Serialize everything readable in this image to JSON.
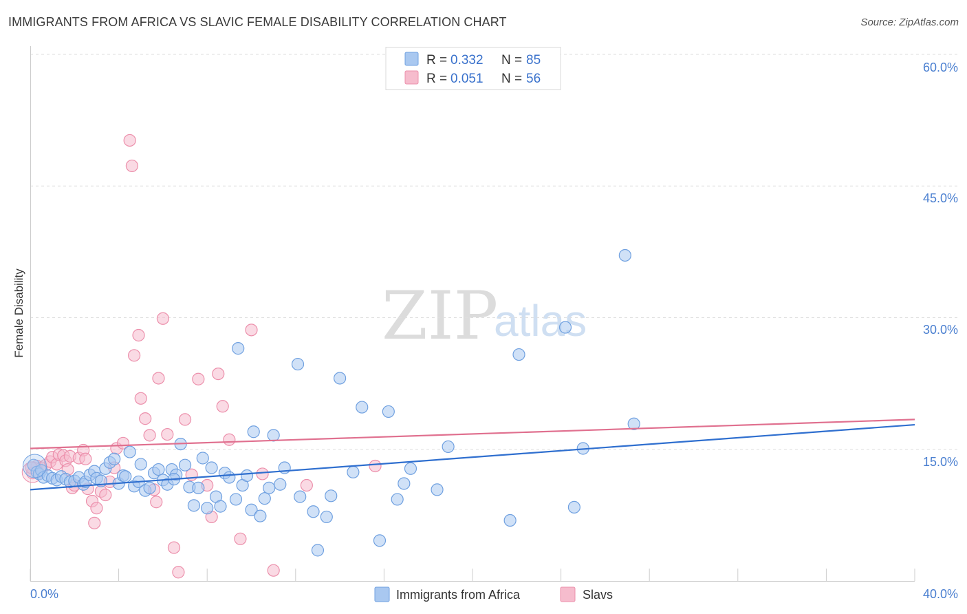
{
  "header": {
    "title": "IMMIGRANTS FROM AFRICA VS SLAVIC FEMALE DISABILITY CORRELATION CHART",
    "source": "Source: ZipAtlas.com"
  },
  "watermark": {
    "zip": "ZIP",
    "atlas": "atlas"
  },
  "colors": {
    "blue_fill": "#a9c8f0",
    "blue_stroke": "#6fa0e0",
    "blue_line": "#2f6fcf",
    "pink_fill": "#f6bccd",
    "pink_stroke": "#ec8fab",
    "pink_line": "#e0708f",
    "grid": "#dedede",
    "tick_label": "#4a7fd0"
  },
  "legend": {
    "rows": [
      {
        "r_label": "R = ",
        "r_value": "0.332",
        "n_label": "N = ",
        "n_value": "85"
      },
      {
        "r_label": "R = ",
        "r_value": "0.051",
        "n_label": "N = ",
        "n_value": "56"
      }
    ]
  },
  "chart_data": {
    "type": "scatter",
    "title": "IMMIGRANTS FROM AFRICA VS SLAVIC FEMALE DISABILITY CORRELATION CHART",
    "xlabel": "",
    "ylabel": "Female Disability",
    "xlim": [
      0,
      40
    ],
    "ylim": [
      0,
      61.5
    ],
    "x_tick_labels": [
      "0.0%",
      "40.0%"
    ],
    "y_ticks": [
      15,
      30,
      45,
      60
    ],
    "y_tick_labels": [
      "15.0%",
      "30.0%",
      "45.0%",
      "60.0%"
    ],
    "grid": true,
    "series": [
      {
        "name": "Immigrants from Africa",
        "R": 0.332,
        "N": 85,
        "trend": {
          "x": [
            0,
            40
          ],
          "y": [
            10.4,
            17.8
          ]
        },
        "points": [
          [
            0.15,
            13.2
          ],
          [
            0.3,
            12.4
          ],
          [
            0.4,
            12.2
          ],
          [
            0.5,
            12.6
          ],
          [
            0.6,
            11.8
          ],
          [
            0.8,
            12.0
          ],
          [
            1.0,
            11.7
          ],
          [
            1.2,
            11.5
          ],
          [
            1.4,
            11.9
          ],
          [
            1.6,
            11.6
          ],
          [
            1.8,
            11.3
          ],
          [
            2.0,
            11.4
          ],
          [
            2.2,
            11.8
          ],
          [
            2.4,
            11.0
          ],
          [
            2.5,
            11.3
          ],
          [
            2.7,
            12.1
          ],
          [
            2.9,
            12.5
          ],
          [
            3.0,
            11.7
          ],
          [
            3.2,
            11.4
          ],
          [
            3.4,
            12.8
          ],
          [
            3.6,
            13.5
          ],
          [
            3.8,
            13.9
          ],
          [
            4.0,
            11.1
          ],
          [
            4.2,
            12.0
          ],
          [
            4.3,
            11.9
          ],
          [
            4.5,
            14.7
          ],
          [
            4.7,
            10.8
          ],
          [
            4.9,
            11.3
          ],
          [
            5.0,
            13.3
          ],
          [
            5.2,
            10.3
          ],
          [
            5.4,
            10.6
          ],
          [
            5.6,
            12.3
          ],
          [
            5.8,
            12.7
          ],
          [
            6.0,
            11.5
          ],
          [
            6.2,
            11.0
          ],
          [
            6.4,
            12.7
          ],
          [
            6.6,
            12.1
          ],
          [
            6.8,
            15.6
          ],
          [
            7.0,
            13.2
          ],
          [
            7.2,
            10.7
          ],
          [
            7.4,
            8.6
          ],
          [
            7.6,
            10.6
          ],
          [
            7.8,
            14.0
          ],
          [
            8.0,
            8.3
          ],
          [
            8.2,
            12.9
          ],
          [
            8.4,
            9.6
          ],
          [
            8.6,
            8.5
          ],
          [
            8.8,
            12.3
          ],
          [
            9.0,
            11.8
          ],
          [
            9.3,
            9.3
          ],
          [
            9.4,
            26.5
          ],
          [
            9.6,
            10.9
          ],
          [
            9.8,
            12.0
          ],
          [
            10.0,
            8.1
          ],
          [
            10.1,
            17.0
          ],
          [
            10.4,
            7.4
          ],
          [
            10.6,
            9.4
          ],
          [
            10.8,
            10.6
          ],
          [
            11.0,
            16.6
          ],
          [
            11.3,
            11.0
          ],
          [
            11.5,
            12.9
          ],
          [
            12.1,
            24.7
          ],
          [
            12.2,
            9.6
          ],
          [
            12.8,
            7.9
          ],
          [
            13.0,
            3.5
          ],
          [
            13.4,
            7.3
          ],
          [
            13.6,
            9.7
          ],
          [
            14.0,
            23.1
          ],
          [
            15.0,
            19.8
          ],
          [
            15.8,
            4.6
          ],
          [
            16.2,
            19.3
          ],
          [
            16.6,
            9.3
          ],
          [
            16.9,
            11.1
          ],
          [
            17.2,
            12.8
          ],
          [
            18.4,
            10.4
          ],
          [
            18.9,
            15.3
          ],
          [
            21.7,
            6.9
          ],
          [
            22.1,
            25.8
          ],
          [
            24.2,
            28.9
          ],
          [
            24.6,
            8.4
          ],
          [
            25.0,
            15.1
          ],
          [
            26.9,
            37.1
          ],
          [
            27.3,
            17.9
          ],
          [
            14.6,
            12.4
          ],
          [
            6.5,
            11.6
          ]
        ]
      },
      {
        "name": "Slavs",
        "R": 0.051,
        "N": 56,
        "trend": {
          "x": [
            0,
            40
          ],
          "y": [
            15.1,
            18.4
          ]
        },
        "points": [
          [
            0.1,
            12.3
          ],
          [
            0.3,
            13.1
          ],
          [
            0.5,
            12.9
          ],
          [
            0.7,
            13.2
          ],
          [
            0.9,
            13.6
          ],
          [
            1.0,
            14.1
          ],
          [
            1.2,
            13.3
          ],
          [
            1.3,
            14.4
          ],
          [
            1.5,
            14.3
          ],
          [
            1.6,
            13.7
          ],
          [
            1.7,
            12.7
          ],
          [
            1.8,
            14.2
          ],
          [
            1.9,
            10.6
          ],
          [
            2.0,
            10.9
          ],
          [
            2.2,
            14.0
          ],
          [
            2.4,
            14.9
          ],
          [
            2.5,
            13.9
          ],
          [
            2.6,
            10.5
          ],
          [
            2.8,
            9.1
          ],
          [
            3.0,
            8.3
          ],
          [
            3.2,
            10.2
          ],
          [
            3.4,
            9.8
          ],
          [
            3.6,
            11.3
          ],
          [
            3.8,
            12.9
          ],
          [
            3.9,
            15.1
          ],
          [
            4.2,
            15.7
          ],
          [
            4.5,
            50.2
          ],
          [
            4.6,
            47.3
          ],
          [
            4.7,
            25.7
          ],
          [
            4.9,
            28.0
          ],
          [
            5.0,
            20.8
          ],
          [
            5.2,
            18.5
          ],
          [
            5.4,
            16.6
          ],
          [
            5.6,
            10.4
          ],
          [
            5.7,
            9.0
          ],
          [
            5.8,
            23.1
          ],
          [
            6.0,
            29.9
          ],
          [
            6.2,
            16.7
          ],
          [
            6.5,
            3.8
          ],
          [
            6.7,
            1.0
          ],
          [
            7.0,
            18.4
          ],
          [
            7.3,
            12.1
          ],
          [
            7.6,
            23.0
          ],
          [
            8.0,
            10.9
          ],
          [
            8.2,
            7.3
          ],
          [
            8.5,
            23.6
          ],
          [
            8.7,
            19.9
          ],
          [
            9.0,
            16.1
          ],
          [
            9.5,
            4.8
          ],
          [
            10.0,
            28.6
          ],
          [
            10.5,
            12.2
          ],
          [
            11.0,
            1.2
          ],
          [
            12.5,
            10.9
          ],
          [
            15.6,
            13.1
          ],
          [
            2.9,
            6.6
          ],
          [
            0.05,
            12.9
          ]
        ]
      }
    ]
  },
  "bottom_legend": {
    "items": [
      {
        "label": "Immigrants from Africa"
      },
      {
        "label": "Slavs"
      }
    ]
  }
}
